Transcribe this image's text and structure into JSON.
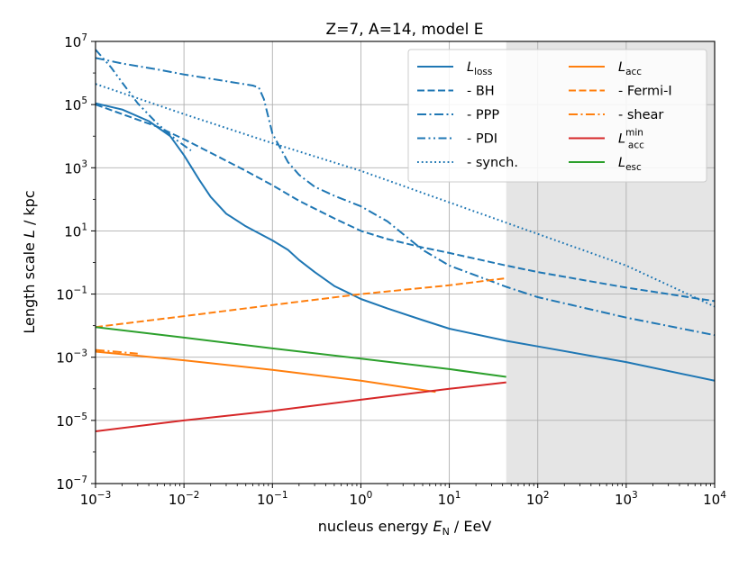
{
  "chart_data": {
    "type": "line",
    "title": "Z=7, A=14, model E",
    "xlabel": {
      "pre": "nucleus energy ",
      "var": "E",
      "sub": "N",
      "post": " / EeV"
    },
    "ylabel": {
      "pre": "Length scale ",
      "var": "L",
      "post": " / kpc"
    },
    "xscale": "log",
    "yscale": "log",
    "xlim": [
      0.001,
      10000
    ],
    "ylim": [
      1e-07,
      10000000.0
    ],
    "grid": true,
    "xticks": [
      {
        "value": 0.001,
        "base": "10",
        "exp": "−3"
      },
      {
        "value": 0.01,
        "base": "10",
        "exp": "−2"
      },
      {
        "value": 0.1,
        "base": "10",
        "exp": "−1"
      },
      {
        "value": 1,
        "base": "10",
        "exp": "0"
      },
      {
        "value": 10,
        "base": "10",
        "exp": "1"
      },
      {
        "value": 100,
        "base": "10",
        "exp": "2"
      },
      {
        "value": 1000,
        "base": "10",
        "exp": "3"
      },
      {
        "value": 10000,
        "base": "10",
        "exp": "4"
      }
    ],
    "yticks": [
      {
        "value": 1e-07,
        "base": "10",
        "exp": "−7"
      },
      {
        "value": 1e-05,
        "base": "10",
        "exp": "−5"
      },
      {
        "value": 0.001,
        "base": "10",
        "exp": "−3"
      },
      {
        "value": 0.1,
        "base": "10",
        "exp": "−1"
      },
      {
        "value": 10,
        "base": "10",
        "exp": "1"
      },
      {
        "value": 1000,
        "base": "10",
        "exp": "3"
      },
      {
        "value": 100000,
        "base": "10",
        "exp": "5"
      },
      {
        "value": 10000000,
        "base": "10",
        "exp": "7"
      }
    ],
    "shaded_region": {
      "x": [
        44,
        10000
      ],
      "color": "#e5e5e5"
    },
    "legend_position": "top-right",
    "series": [
      {
        "name": "L_loss",
        "legend": {
          "main": "L",
          "italic": true,
          "sub": "loss",
          "sup": ""
        },
        "color": "#1f77b4",
        "style": "solid",
        "x": [
          0.001,
          0.002,
          0.004,
          0.007,
          0.01,
          0.015,
          0.02,
          0.03,
          0.05,
          0.1,
          0.15,
          0.2,
          0.3,
          0.5,
          1,
          2,
          5,
          10,
          44,
          100,
          1000,
          10000
        ],
        "y": [
          110000,
          70000,
          30000,
          10000,
          2500,
          400,
          120,
          35,
          14,
          5,
          2.5,
          1.2,
          0.5,
          0.18,
          0.07,
          0.035,
          0.015,
          0.008,
          0.0033,
          0.0022,
          0.0007,
          0.00018
        ]
      },
      {
        "name": "BH",
        "legend": {
          "main": "  - BH",
          "italic": false,
          "sub": "",
          "sup": ""
        },
        "color": "#1f77b4",
        "style": "dashed",
        "x": [
          0.001,
          0.002,
          0.005,
          0.01,
          0.02,
          0.05,
          0.1,
          0.2,
          0.5,
          1,
          2,
          5,
          10,
          44,
          100,
          1000,
          10000
        ],
        "y": [
          100000,
          50000,
          20000,
          8000,
          3000,
          800,
          280,
          90,
          25,
          10,
          5.5,
          3,
          2,
          0.8,
          0.5,
          0.16,
          0.06
        ]
      },
      {
        "name": "PPP",
        "legend": {
          "main": "  - PPP",
          "italic": false,
          "sub": "",
          "sup": ""
        },
        "color": "#1f77b4",
        "style": "dashdot",
        "x": [
          0.001,
          0.002,
          0.005,
          0.01,
          0.03,
          0.06,
          0.07,
          0.08,
          0.1,
          0.15,
          0.2,
          0.3,
          0.5,
          1,
          2,
          5,
          10,
          44,
          100,
          1000,
          10000
        ],
        "y": [
          3000000,
          2000000,
          1300000,
          900000,
          550000,
          400000,
          350000,
          150000,
          12000,
          1500,
          600,
          250,
          130,
          60,
          20,
          2.5,
          0.8,
          0.17,
          0.08,
          0.018,
          0.005
        ]
      },
      {
        "name": "PDI",
        "legend": {
          "main": "  - PDI",
          "italic": false,
          "sub": "",
          "sup": ""
        },
        "color": "#1f77b4",
        "style": "pdi",
        "x": [
          0.001,
          0.0015,
          0.002,
          0.003,
          0.005,
          0.008,
          0.012
        ],
        "y": [
          5500000,
          1500000,
          500000,
          110000,
          25000,
          8000,
          3500
        ]
      },
      {
        "name": "synch.",
        "legend": {
          "main": "  - synch.",
          "italic": false,
          "sub": "",
          "sup": ""
        },
        "color": "#1f77b4",
        "style": "dotted",
        "x": [
          0.001,
          0.01,
          0.1,
          1,
          10,
          100,
          1000,
          10000
        ],
        "y": [
          450000,
          50000,
          6000,
          800,
          80,
          8,
          0.8,
          0.04
        ]
      },
      {
        "name": "L_acc",
        "legend": {
          "main": "L",
          "italic": true,
          "sub": "acc",
          "sup": ""
        },
        "color": "#ff7f0e",
        "style": "solid",
        "x": [
          0.001,
          0.01,
          0.1,
          1,
          7
        ],
        "y": [
          0.0015,
          0.0008,
          0.0004,
          0.00018,
          8e-05
        ]
      },
      {
        "name": "Fermi-I",
        "legend": {
          "main": "  - Fermi-I",
          "italic": false,
          "sub": "",
          "sup": ""
        },
        "color": "#ff7f0e",
        "style": "dashed",
        "x": [
          0.001,
          0.01,
          0.1,
          1,
          10,
          44
        ],
        "y": [
          0.009,
          0.02,
          0.045,
          0.1,
          0.19,
          0.32
        ]
      },
      {
        "name": "shear",
        "legend": {
          "main": "  - shear",
          "italic": false,
          "sub": "",
          "sup": ""
        },
        "color": "#ff7f0e",
        "style": "dashdot",
        "x": [
          0.001,
          0.003
        ],
        "y": [
          0.0017,
          0.0013
        ]
      },
      {
        "name": "L_acc_min",
        "legend": {
          "main": "L",
          "italic": true,
          "sub": "acc",
          "sup": "min"
        },
        "color": "#d62728",
        "style": "solid",
        "x": [
          0.001,
          0.01,
          0.1,
          1,
          10,
          44
        ],
        "y": [
          4.5e-06,
          1e-05,
          2e-05,
          4.5e-05,
          0.0001,
          0.00016
        ]
      },
      {
        "name": "L_esc",
        "legend": {
          "main": "L",
          "italic": true,
          "sub": "esc",
          "sup": ""
        },
        "color": "#2ca02c",
        "style": "solid",
        "x": [
          0.001,
          0.01,
          0.1,
          1,
          10,
          44
        ],
        "y": [
          0.009,
          0.0042,
          0.0019,
          0.0009,
          0.00042,
          0.00024
        ]
      }
    ]
  }
}
